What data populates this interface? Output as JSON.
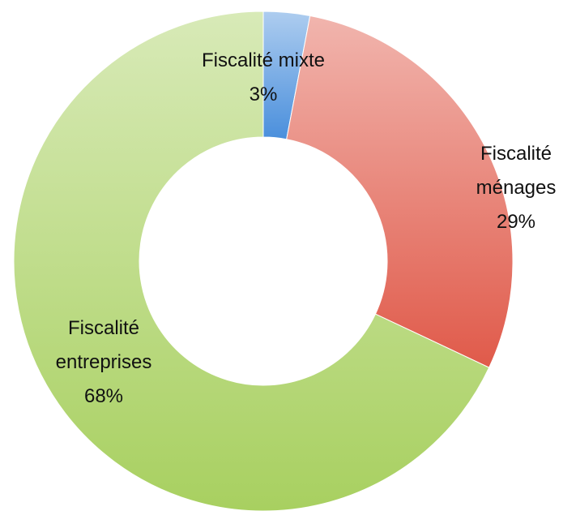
{
  "chart_data": {
    "type": "donut",
    "categories": [
      "Fiscalité mixte",
      "Fiscalité ménages",
      "Fiscalité entreprises"
    ],
    "values": [
      3,
      29,
      68
    ],
    "value_labels": [
      "3%",
      "29%",
      "68%"
    ],
    "colors": [
      "#4a8fdc",
      "#e05a4a",
      "#a8d060"
    ]
  }
}
